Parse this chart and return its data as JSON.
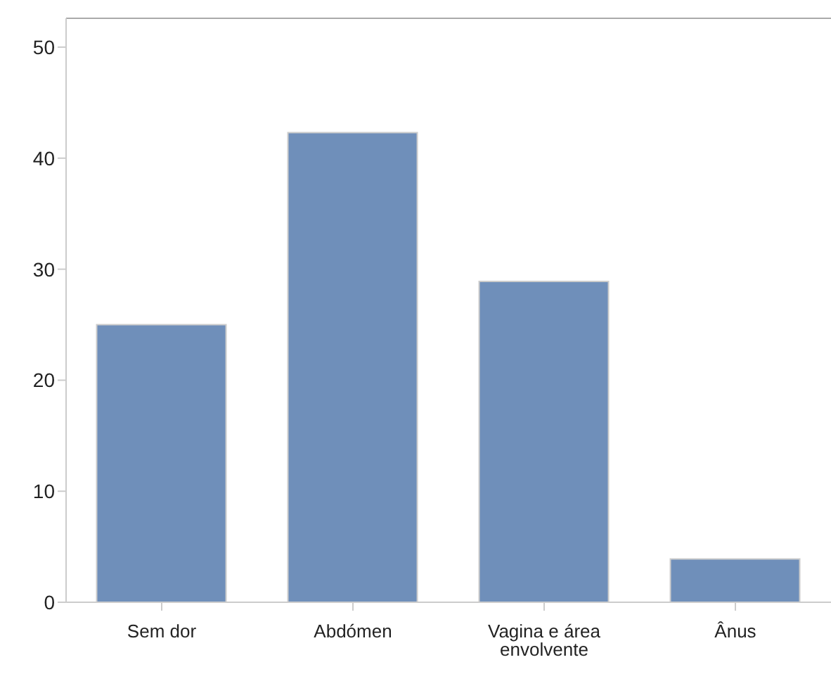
{
  "chart_data": {
    "type": "bar",
    "categories": [
      "Sem dor",
      "Abdómen",
      "Vagina e área envolvente",
      "Ânus"
    ],
    "values": [
      25.0,
      42.3,
      28.9,
      3.9
    ],
    "color": "#6f8fba",
    "ylim": [
      0,
      52.6
    ],
    "yticks": [
      0,
      10,
      20,
      30,
      40,
      50
    ],
    "grid": false
  }
}
